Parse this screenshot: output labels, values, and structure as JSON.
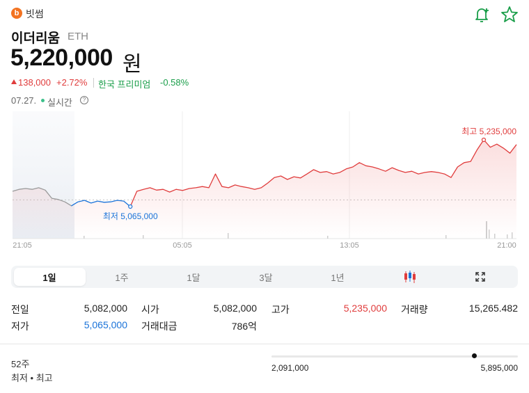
{
  "header": {
    "exchange": "빗썸",
    "coin_name": "이더리움",
    "symbol": "ETH",
    "price": "5,220,000",
    "currency": "원",
    "change": "138,000",
    "change_rate": "+2.72%",
    "premium_label": "한국 프리미엄",
    "premium_rate": "-0.58%",
    "date": "07.27.",
    "realtime": "실시간"
  },
  "chart": {
    "type": "line",
    "x_labels": [
      "21:05",
      "05:05",
      "13:05",
      "21:00"
    ],
    "values": [
      5104000,
      5109000,
      5111000,
      5109000,
      5113000,
      5107000,
      5086000,
      5083000,
      5077000,
      5067000,
      5077000,
      5081000,
      5074000,
      5079000,
      5076000,
      5077000,
      5081000,
      5079000,
      5065000,
      5104000,
      5109000,
      5113000,
      5107000,
      5109000,
      5102000,
      5109000,
      5106000,
      5111000,
      5113000,
      5116000,
      5113000,
      5148000,
      5116000,
      5113000,
      5120000,
      5116000,
      5113000,
      5109000,
      5113000,
      5125000,
      5139000,
      5143000,
      5134000,
      5141000,
      5138000,
      5148000,
      5159000,
      5152000,
      5154000,
      5148000,
      5152000,
      5161000,
      5166000,
      5177000,
      5169000,
      5166000,
      5161000,
      5155000,
      5164000,
      5157000,
      5152000,
      5155000,
      5148000,
      5152000,
      5154000,
      5152000,
      5148000,
      5139000,
      5166000,
      5177000,
      5180000,
      5210000,
      5235000,
      5216000,
      5224000,
      5214000,
      5201000,
      5223000
    ],
    "baseline": 5082000,
    "annotations": {
      "high": "최고 5,235,000",
      "low": "최저 5,065,000"
    }
  },
  "tabs": [
    "1일",
    "1주",
    "1달",
    "3달",
    "1년"
  ],
  "stats": [
    {
      "label": "전일",
      "value": "5,082,000"
    },
    {
      "label": "시가",
      "value": "5,082,000"
    },
    {
      "label": "고가",
      "value": "5,235,000"
    },
    {
      "label": "거래량",
      "value": "15,265.482"
    },
    {
      "label": "저가",
      "value": "5,065,000"
    },
    {
      "label": "거래대금",
      "value": "786억"
    }
  ],
  "week52": {
    "title": "52주",
    "subtitle": "최저 • 최고",
    "low": "2,091,000",
    "high": "5,895,000"
  }
}
